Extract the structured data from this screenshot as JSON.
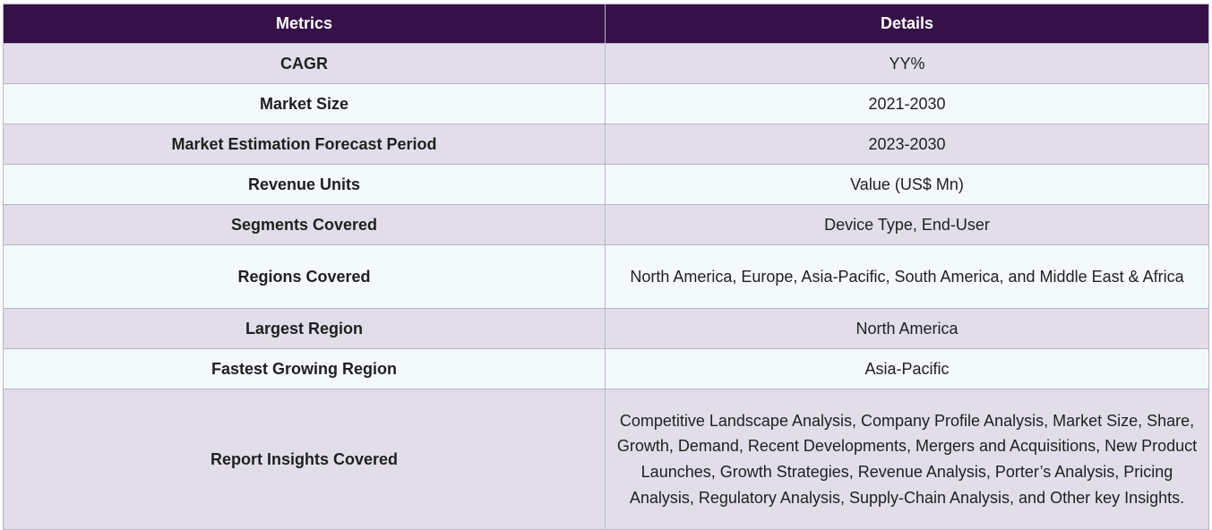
{
  "table": {
    "headers": [
      "Metrics",
      "Details"
    ],
    "rows": [
      {
        "metric": "CAGR",
        "details": "YY%"
      },
      {
        "metric": "Market Size",
        "details": "2021-2030"
      },
      {
        "metric": "Market Estimation Forecast Period",
        "details": "2023-2030"
      },
      {
        "metric": "Revenue Units",
        "details": "Value (US$ Mn)"
      },
      {
        "metric": "Segments Covered",
        "details": "Device Type, End-User"
      },
      {
        "metric": "Regions Covered",
        "details": "North America, Europe, Asia-Pacific, South America, and Middle East & Africa"
      },
      {
        "metric": "Largest Region",
        "details": "North America"
      },
      {
        "metric": "Fastest Growing Region",
        "details": "Asia-Pacific"
      },
      {
        "metric": "Report Insights Covered",
        "details": "Competitive Landscape Analysis, Company Profile Analysis, Market Size, Share, Growth, Demand, Recent Developments, Mergers and Acquisitions, New Product Launches, Growth Strategies, Revenue Analysis, Porter’s Analysis, Pricing Analysis, Regulatory Analysis, Supply-Chain Analysis, and Other key Insights."
      }
    ]
  },
  "colors": {
    "header_bg": "#361148",
    "row_odd_bg": "#e2dee9",
    "row_even_bg": "#f4f9fc",
    "border": "#b7b4c9"
  }
}
